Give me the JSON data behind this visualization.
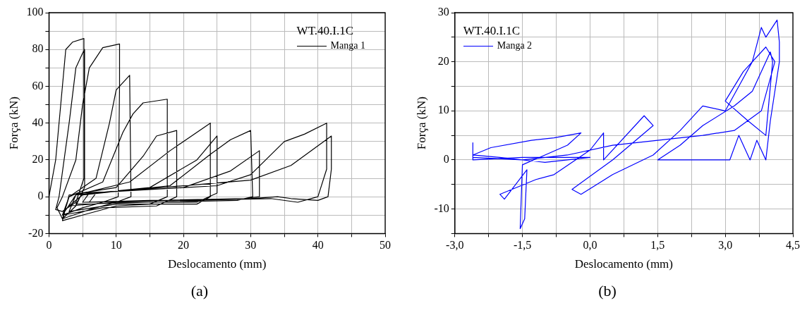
{
  "chart_data": [
    {
      "type": "line",
      "xlabel": "Deslocamento (mm)",
      "ylabel": "Força (kN)",
      "legend_title": "WT.40.I.1C",
      "legend": "top right",
      "grid": true,
      "marker": "none",
      "line_style": "solid",
      "xlim": [
        0,
        50
      ],
      "ylim": [
        -20,
        100
      ],
      "xticks": [
        0,
        {
          "value": 5,
          "label": null
        },
        10,
        {
          "value": 15,
          "label": null
        },
        20,
        {
          "value": 25,
          "label": null
        },
        30,
        {
          "value": 35,
          "label": null
        },
        40,
        {
          "value": 45,
          "label": null
        },
        50
      ],
      "yticks": [
        -20,
        {
          "value": -10,
          "label": null
        },
        0,
        {
          "value": 10,
          "label": null
        },
        20,
        {
          "value": 30,
          "label": null
        },
        40,
        {
          "value": 50,
          "label": null
        },
        60,
        {
          "value": 70,
          "label": null
        },
        80,
        {
          "value": 90,
          "label": null
        },
        100
      ],
      "annotations": [
        "(a)"
      ],
      "series": [
        {
          "name": "Manga 1",
          "color": "#000000",
          "x": [
            0,
            1,
            2,
            2.5,
            3.5,
            5.2,
            5.2,
            4,
            2,
            1,
            1.5,
            3,
            4,
            5,
            5.3,
            5.3,
            4,
            2,
            1.2,
            2,
            4,
            5,
            6,
            8,
            10.5,
            10.5,
            10.3,
            8,
            5,
            2,
            3,
            7,
            9,
            10,
            12,
            12.2,
            10,
            6,
            2,
            3,
            8,
            11,
            12.5,
            14,
            17.6,
            17.6,
            15,
            10,
            5,
            2,
            3,
            10,
            14,
            16,
            19,
            19,
            16,
            8,
            2,
            4,
            12,
            18,
            24,
            24,
            22,
            10,
            3,
            4,
            15,
            22,
            25,
            25,
            22,
            10,
            3,
            5,
            18,
            24,
            27,
            30,
            30.3,
            28,
            15,
            4,
            5,
            20,
            27,
            31.3,
            31.3,
            29,
            15,
            5,
            6,
            25,
            30,
            35,
            38,
            41.3,
            41.3,
            40,
            37,
            33,
            20,
            6,
            7,
            30,
            36,
            42,
            42,
            41.5,
            40,
            36,
            34,
            30,
            15
          ],
          "values": [
            0,
            20,
            60,
            80,
            84,
            86,
            10,
            -3,
            -8,
            -7,
            0,
            40,
            70,
            78,
            80,
            5,
            -5,
            -12,
            -6,
            0,
            20,
            50,
            70,
            81,
            83,
            60,
            0,
            -3,
            -6,
            -10,
            0,
            10,
            40,
            58,
            66,
            0,
            -3,
            -7,
            -12,
            0,
            8,
            35,
            45,
            51,
            53,
            0,
            -4,
            -5,
            -10,
            -13,
            1,
            5,
            22,
            33,
            36,
            0,
            -5,
            -6,
            -10,
            1,
            8,
            25,
            40,
            0,
            -4,
            -4,
            -8,
            1,
            5,
            20,
            33,
            2,
            -3,
            -3,
            -5,
            1,
            6,
            23,
            31,
            36,
            0,
            -2,
            -3,
            -4,
            2,
            5,
            14,
            25,
            0,
            -1,
            -2,
            -3,
            2,
            6,
            12,
            30,
            34,
            40,
            15,
            0,
            -3,
            -1,
            -2,
            -3,
            2,
            9,
            17,
            33,
            15,
            0,
            -2,
            -1,
            0,
            -1,
            -2
          ]
        }
      ]
    },
    {
      "type": "line",
      "xlabel": "Deslocamento (mm)",
      "ylabel": "Força (kN)",
      "legend_title": "WT.40.I.1C",
      "legend": "top left",
      "grid": true,
      "marker": "none",
      "line_style": "solid",
      "xlim": [
        -3,
        4.5
      ],
      "ylim": [
        -15,
        30
      ],
      "xticks": [
        {
          "value": -3,
          "label": "-3,0"
        },
        {
          "value": -2.25,
          "label": null
        },
        {
          "value": -1.5,
          "label": "-1,5"
        },
        {
          "value": -0.75,
          "label": null
        },
        {
          "value": 0,
          "label": "0,0"
        },
        {
          "value": 0.75,
          "label": null
        },
        {
          "value": 1.5,
          "label": "1,5"
        },
        {
          "value": 2.25,
          "label": null
        },
        {
          "value": 3,
          "label": "3,0"
        },
        {
          "value": 3.75,
          "label": null
        },
        {
          "value": 4.5,
          "label": "4,5"
        }
      ],
      "yticks": [
        {
          "value": -15,
          "label": null
        },
        -10,
        {
          "value": -5,
          "label": null
        },
        0,
        {
          "value": 5,
          "label": null
        },
        10,
        {
          "value": 15,
          "label": null
        },
        20,
        {
          "value": 25,
          "label": null
        },
        30
      ],
      "annotations": [
        "(b)"
      ],
      "series": [
        {
          "name": "Manga 2",
          "color": "#0000ff",
          "x": [
            -2.6,
            -2.6,
            -1.5,
            0,
            -1,
            -2,
            -2.6,
            -2.2,
            -1.3,
            -0.8,
            -0.2,
            -0.5,
            -1.5,
            -1.55,
            -1.45,
            -1.4,
            -1.9,
            -2,
            -1.2,
            -0.8,
            0,
            0.3,
            0.3,
            1.2,
            1.4,
            0.5,
            -0.4,
            -0.2,
            0.5,
            1.4,
            2,
            2.5,
            3,
            3.3,
            3.6,
            3.8,
            3.9,
            4.15,
            4.2,
            4.2,
            4,
            3.9,
            3.7,
            3.55,
            3.3,
            3.1,
            1.5,
            2,
            2.5,
            3.2,
            3.6,
            4,
            4.05,
            3.9,
            3.5,
            3,
            3.4,
            3.9,
            4.1,
            3.8,
            3.2,
            2.5,
            1.5,
            0.5,
            -0.5,
            -1.5,
            -2.6
          ],
          "values": [
            3.5,
            0,
            0.5,
            0.5,
            -0.5,
            0.5,
            1,
            2.5,
            4,
            4.5,
            5.5,
            3,
            -1,
            -14,
            -12,
            -2,
            -8,
            -7,
            -4,
            -3,
            2,
            5.5,
            0,
            9,
            7,
            0,
            -6,
            -7,
            -3,
            1,
            6,
            11,
            10,
            15,
            20,
            27,
            25,
            28.5,
            24,
            20,
            8,
            0,
            4,
            0,
            5,
            0,
            0,
            3,
            7,
            11,
            14,
            22,
            20,
            5,
            8,
            12,
            18,
            23,
            20,
            10,
            6,
            5,
            4,
            3,
            1,
            0,
            0.5
          ]
        }
      ]
    }
  ]
}
